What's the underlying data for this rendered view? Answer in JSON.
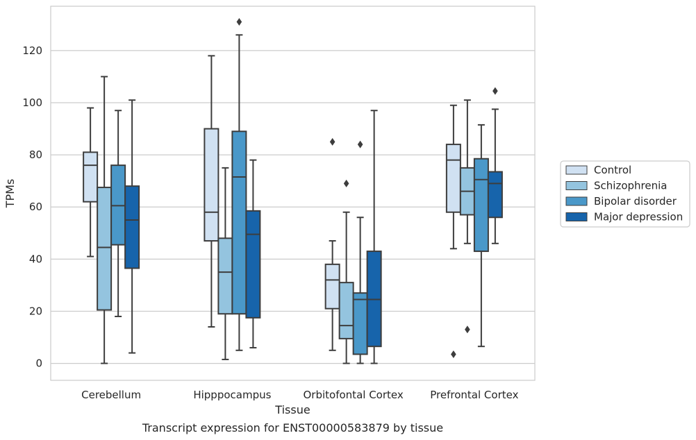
{
  "caption": "Transcript expression for ENST00000583879 by tissue",
  "chart_data": {
    "type": "box",
    "title": "",
    "xlabel": "Tissue",
    "ylabel": "TPMs",
    "ylim": [
      -6.5,
      137
    ],
    "yticks": [
      0,
      20,
      40,
      60,
      80,
      100,
      120
    ],
    "grid": "horizontal",
    "legend_position": "right",
    "categories": [
      "Cerebellum",
      "Hipppocampus",
      "Orbitofontal Cortex",
      "Prefrontal Cortex"
    ],
    "series": [
      {
        "name": "Control",
        "color": "#d0e1f2",
        "boxes": [
          {
            "whislo": 41,
            "q1": 62,
            "med": 76,
            "q3": 81,
            "whishi": 98,
            "fliers": []
          },
          {
            "whislo": 14,
            "q1": 47,
            "med": 58,
            "q3": 90,
            "whishi": 118,
            "fliers": []
          },
          {
            "whislo": 5,
            "q1": 21,
            "med": 32,
            "q3": 38,
            "whishi": 47,
            "fliers": [
              85
            ]
          },
          {
            "whislo": 44,
            "q1": 58,
            "med": 78,
            "q3": 84,
            "whishi": 99,
            "fliers": [
              3.5
            ]
          }
        ]
      },
      {
        "name": "Schizophrenia",
        "color": "#94c4df",
        "boxes": [
          {
            "whislo": 0,
            "q1": 20.5,
            "med": 44.5,
            "q3": 67.5,
            "whishi": 110,
            "fliers": []
          },
          {
            "whislo": 1.5,
            "q1": 19,
            "med": 35,
            "q3": 48,
            "whishi": 75,
            "fliers": []
          },
          {
            "whislo": 0,
            "q1": 9.5,
            "med": 14.5,
            "q3": 31,
            "whishi": 58,
            "fliers": [
              69
            ]
          },
          {
            "whislo": 46,
            "q1": 57,
            "med": 66,
            "q3": 75,
            "whishi": 101,
            "fliers": [
              13
            ]
          }
        ]
      },
      {
        "name": "Bipolar disorder",
        "color": "#4a98c9",
        "boxes": [
          {
            "whislo": 18,
            "q1": 45.5,
            "med": 60.5,
            "q3": 76,
            "whishi": 97,
            "fliers": []
          },
          {
            "whislo": 5,
            "q1": 19,
            "med": 71.5,
            "q3": 89,
            "whishi": 126,
            "fliers": [
              131
            ]
          },
          {
            "whislo": 0,
            "q1": 3.5,
            "med": 24.5,
            "q3": 27,
            "whishi": 56,
            "fliers": [
              84
            ]
          },
          {
            "whislo": 6.5,
            "q1": 43,
            "med": 70.5,
            "q3": 78.5,
            "whishi": 91.5,
            "fliers": []
          }
        ]
      },
      {
        "name": "Major depression",
        "color": "#1764ab",
        "boxes": [
          {
            "whislo": 4,
            "q1": 36.5,
            "med": 55,
            "q3": 68,
            "whishi": 101,
            "fliers": []
          },
          {
            "whislo": 6,
            "q1": 17.5,
            "med": 49.5,
            "q3": 58.5,
            "whishi": 78,
            "fliers": []
          },
          {
            "whislo": 0,
            "q1": 6.5,
            "med": 24.5,
            "q3": 43,
            "whishi": 97,
            "fliers": []
          },
          {
            "whislo": 46,
            "q1": 56,
            "med": 69,
            "q3": 73.5,
            "whishi": 97.5,
            "fliers": [
              104.5
            ]
          }
        ]
      }
    ]
  }
}
